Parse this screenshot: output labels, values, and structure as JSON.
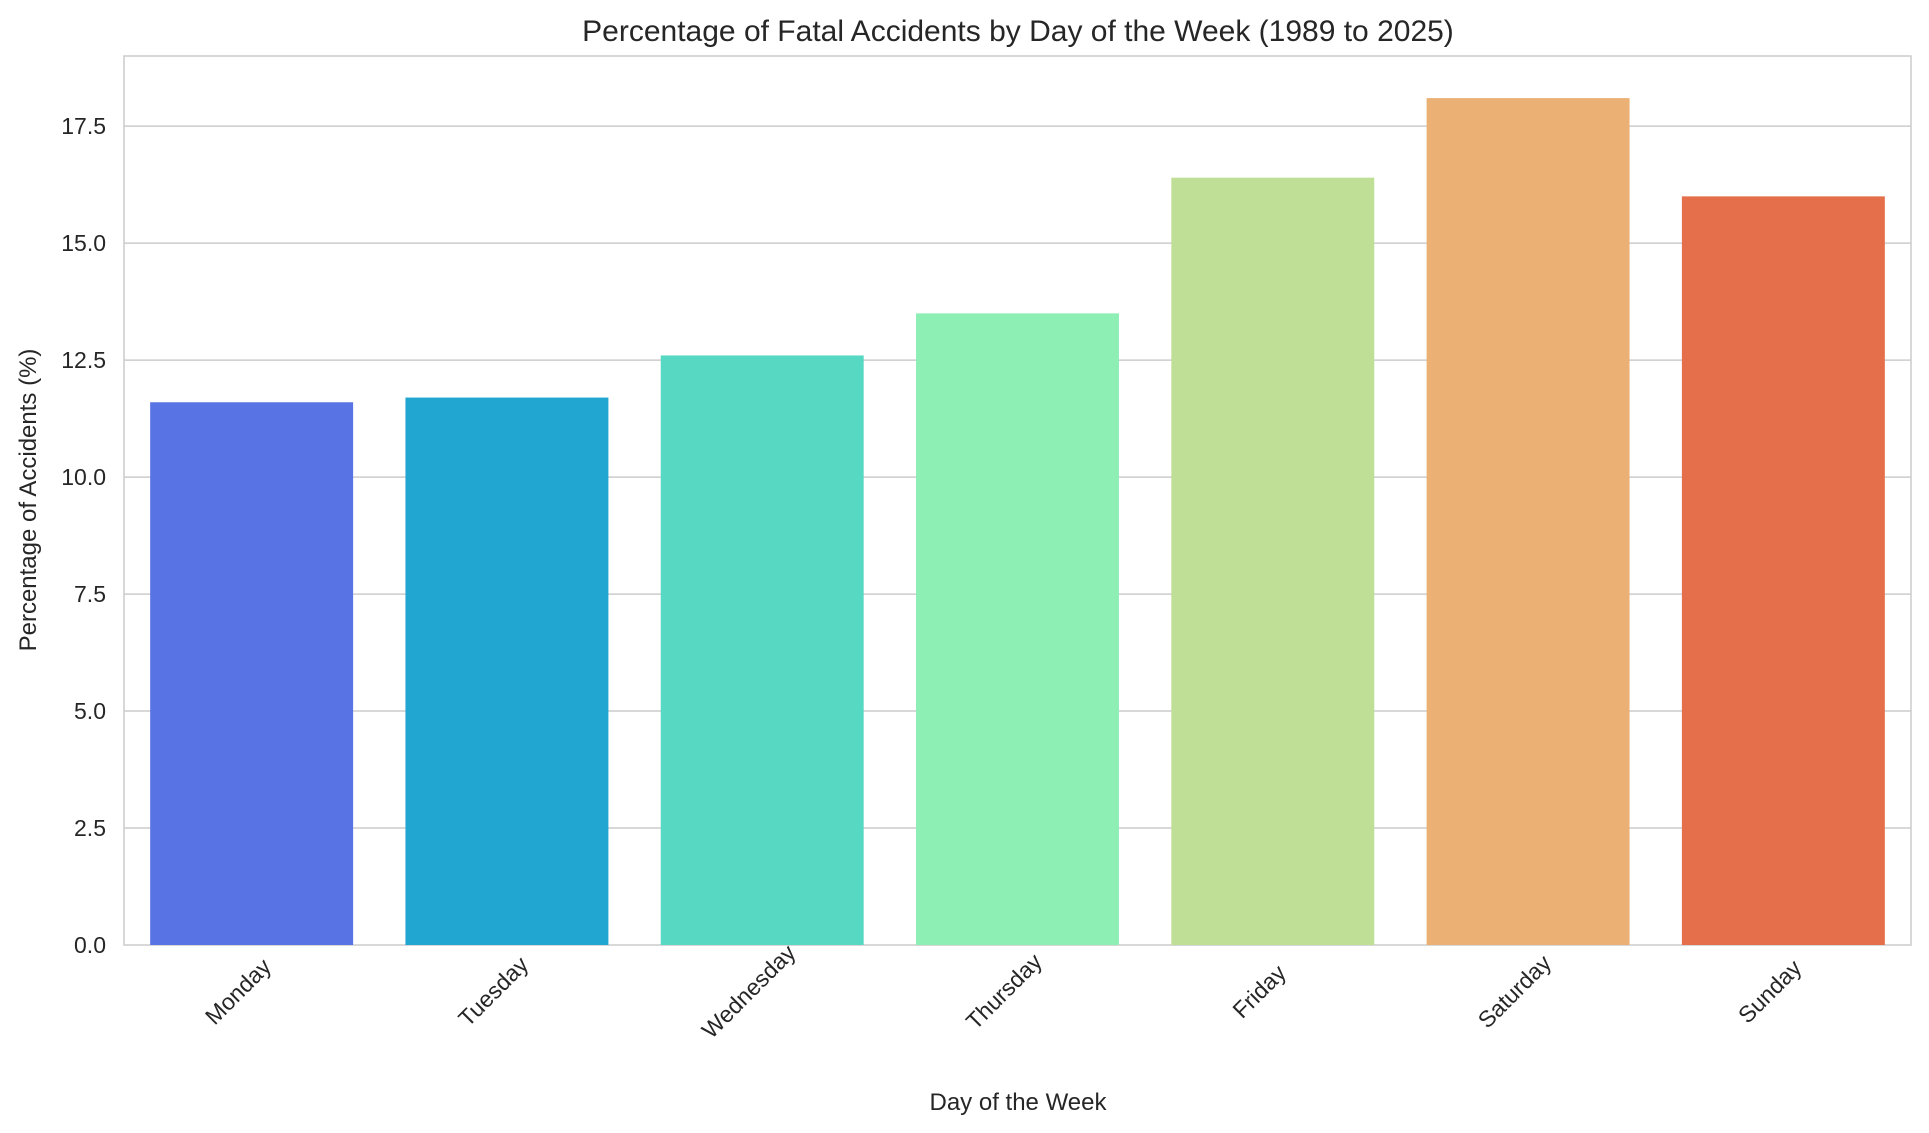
{
  "chart_data": {
    "type": "bar",
    "title": "Percentage of Fatal Accidents by Day of the Week (1989 to 2025)",
    "xlabel": "Day of the Week",
    "ylabel": "Percentage of Accidents (%)",
    "categories": [
      "Monday",
      "Tuesday",
      "Wednesday",
      "Thursday",
      "Friday",
      "Saturday",
      "Sunday"
    ],
    "values": [
      11.6,
      11.7,
      12.6,
      13.5,
      16.4,
      18.1,
      16.0
    ],
    "colors": [
      "#5873e3",
      "#20a6d1",
      "#57d8c3",
      "#8eefb4",
      "#c0df96",
      "#ebb074",
      "#e66f4b"
    ],
    "ylim": [
      0,
      19
    ],
    "yticks": [
      "0.0",
      "2.5",
      "5.0",
      "7.5",
      "10.0",
      "12.5",
      "15.0",
      "17.5"
    ],
    "grid": true,
    "legend": false
  }
}
